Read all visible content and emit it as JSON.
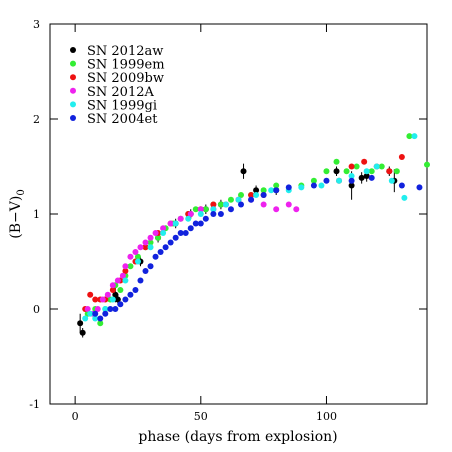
{
  "chart_data": {
    "type": "scatter",
    "xlabel": "phase (days from explosion)",
    "ylabel": "(B−V)",
    "ylabel_subscript": "0",
    "xlim": [
      -10,
      140
    ],
    "ylim": [
      -1,
      3
    ],
    "xticks": [
      0,
      50,
      100
    ],
    "yticks": [
      -1,
      0,
      1,
      2,
      3
    ],
    "legend": "upper-left",
    "series": [
      {
        "name": "SN 2012aw",
        "color": "#000000",
        "x": [
          2,
          3,
          16,
          17,
          26,
          33,
          40,
          46,
          52,
          58,
          67,
          72,
          80,
          104,
          110,
          114,
          116,
          125,
          127
        ],
        "values": [
          -0.15,
          -0.25,
          0.15,
          0.1,
          0.5,
          0.75,
          0.9,
          1.0,
          1.05,
          1.1,
          1.45,
          1.25,
          1.25,
          1.45,
          1.3,
          1.38,
          1.4,
          1.45,
          1.35
        ],
        "errors": [
          0.1,
          0.05,
          0.08,
          0.06,
          0.05,
          0.05,
          0.05,
          0.05,
          0.05,
          0.05,
          0.08,
          0.05,
          0.05,
          0.05,
          0.15,
          0.06,
          0.06,
          0.05,
          0.12
        ]
      },
      {
        "name": "SN 1999em",
        "color": "#33ee33",
        "x": [
          5,
          8,
          10,
          12,
          14,
          16,
          18,
          20,
          22,
          25,
          28,
          30,
          33,
          36,
          39,
          42,
          45,
          48,
          52,
          55,
          58,
          62,
          66,
          70,
          75,
          80,
          90,
          95,
          100,
          104,
          108,
          112,
          118,
          122,
          128,
          133,
          140
        ],
        "values": [
          -0.05,
          0.0,
          -0.15,
          0.0,
          0.1,
          0.25,
          0.2,
          0.35,
          0.45,
          0.55,
          0.65,
          0.7,
          0.75,
          0.85,
          0.9,
          0.95,
          1.0,
          1.05,
          1.05,
          1.1,
          1.1,
          1.15,
          1.2,
          1.2,
          1.25,
          1.3,
          1.3,
          1.35,
          1.45,
          1.55,
          1.45,
          1.5,
          1.45,
          1.5,
          1.45,
          1.82,
          1.52
        ]
      },
      {
        "name": "SN 2009bw",
        "color": "#ee1111",
        "x": [
          4,
          6,
          8,
          10,
          12,
          15,
          18,
          20,
          24,
          28,
          33,
          38,
          45,
          50,
          55,
          60,
          65,
          70,
          75,
          105,
          110,
          115,
          120,
          125,
          130
        ],
        "values": [
          0.0,
          0.15,
          0.1,
          0.1,
          0.1,
          0.2,
          0.3,
          0.4,
          0.5,
          0.65,
          0.8,
          0.9,
          1.0,
          1.05,
          1.1,
          1.1,
          1.15,
          1.2,
          1.2,
          1.35,
          1.5,
          1.55,
          1.5,
          1.45,
          1.6
        ]
      },
      {
        "name": "SN 2012A",
        "color": "#ee22ee",
        "x": [
          5,
          7,
          9,
          11,
          13,
          15,
          17,
          19,
          20,
          22,
          24,
          26,
          28,
          30,
          32,
          35,
          38,
          42,
          46,
          50,
          55,
          60,
          65,
          70,
          75,
          80,
          85,
          88
        ],
        "values": [
          0.0,
          -0.05,
          0.0,
          0.1,
          0.15,
          0.25,
          0.3,
          0.35,
          0.45,
          0.55,
          0.6,
          0.65,
          0.7,
          0.75,
          0.8,
          0.85,
          0.9,
          0.95,
          1.0,
          1.05,
          1.05,
          1.1,
          1.15,
          1.15,
          1.1,
          1.05,
          1.1,
          1.05
        ]
      },
      {
        "name": "SN 1999gi",
        "color": "#22eeee",
        "x": [
          4,
          6,
          8,
          12,
          15,
          20,
          25,
          30,
          35,
          40,
          45,
          50,
          55,
          60,
          65,
          72,
          78,
          85,
          90,
          98,
          105,
          110,
          116,
          120,
          126,
          131,
          135
        ],
        "values": [
          -0.1,
          -0.05,
          -0.1,
          0.0,
          0.1,
          0.3,
          0.5,
          0.65,
          0.8,
          0.9,
          0.95,
          1.0,
          1.05,
          1.1,
          1.15,
          1.2,
          1.25,
          1.25,
          1.28,
          1.3,
          1.35,
          1.4,
          1.45,
          1.5,
          1.35,
          1.17,
          1.82
        ]
      },
      {
        "name": "SN 2004et",
        "color": "#1122dd",
        "x": [
          8,
          10,
          12,
          14,
          16,
          18,
          20,
          22,
          24,
          26,
          28,
          30,
          32,
          34,
          36,
          38,
          40,
          42,
          44,
          46,
          48,
          50,
          52,
          55,
          58,
          62,
          66,
          70,
          75,
          80,
          85,
          95,
          100,
          110,
          118,
          130,
          137
        ],
        "values": [
          -0.05,
          -0.1,
          -0.05,
          0.0,
          0.0,
          0.05,
          0.1,
          0.15,
          0.2,
          0.3,
          0.4,
          0.45,
          0.55,
          0.6,
          0.65,
          0.7,
          0.75,
          0.8,
          0.8,
          0.85,
          0.9,
          0.9,
          0.95,
          1.0,
          1.0,
          1.05,
          1.1,
          1.15,
          1.2,
          1.25,
          1.28,
          1.3,
          1.35,
          1.35,
          1.38,
          1.3,
          1.28
        ]
      }
    ]
  }
}
